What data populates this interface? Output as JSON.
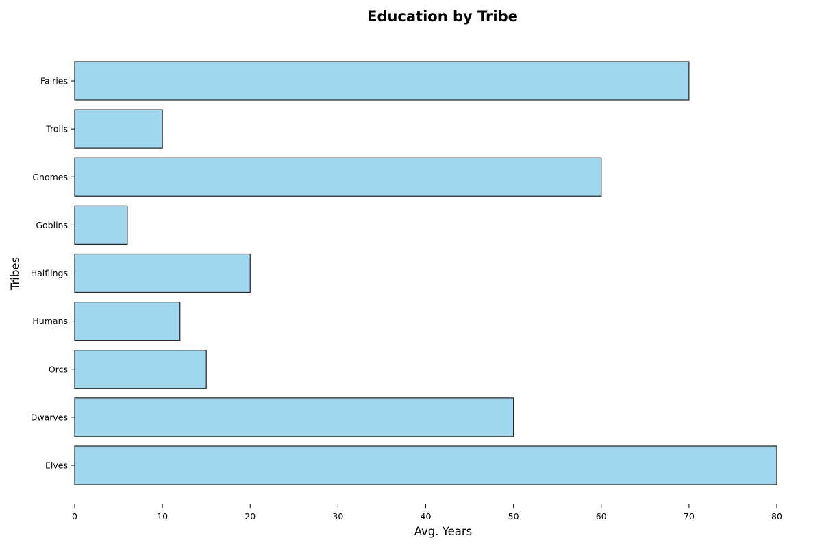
{
  "chart_data": {
    "type": "bar",
    "orientation": "horizontal",
    "title": "Education by Tribe",
    "xlabel": "Avg. Years",
    "ylabel": "Tribes",
    "categories": [
      "Elves",
      "Dwarves",
      "Orcs",
      "Humans",
      "Halflings",
      "Goblins",
      "Gnomes",
      "Trolls",
      "Fairies"
    ],
    "values": [
      80,
      50,
      15,
      12,
      20,
      6,
      60,
      10,
      70
    ],
    "xlim": [
      0,
      80
    ],
    "xticks": [
      "0",
      "10",
      "20",
      "30",
      "40",
      "50",
      "60",
      "70",
      "80"
    ],
    "grid": false,
    "bar_color": "#a0d6ee",
    "edge_color": "#222222"
  }
}
